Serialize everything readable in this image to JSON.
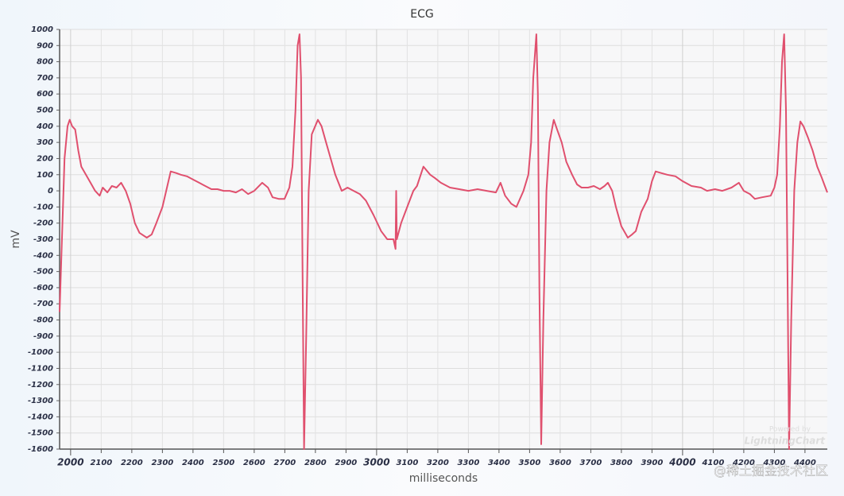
{
  "chart_data": {
    "type": "line",
    "title": "ECG",
    "x_label": "milliseconds",
    "y_label": "mV",
    "xlim": [
      1964,
      4473
    ],
    "ylim": [
      -1600,
      1000
    ],
    "xticks": [
      2000,
      2100,
      2200,
      2300,
      2400,
      2500,
      2600,
      2700,
      2800,
      2900,
      3000,
      3100,
      3200,
      3300,
      3400,
      3500,
      3600,
      3700,
      3800,
      3900,
      4000,
      4100,
      4200,
      4300,
      4400
    ],
    "yticks": [
      -1600,
      -1500,
      -1400,
      -1300,
      -1200,
      -1100,
      -1000,
      -900,
      -800,
      -700,
      -600,
      -500,
      -400,
      -300,
      -200,
      -100,
      0,
      100,
      200,
      300,
      400,
      500,
      600,
      700,
      800,
      900,
      1000
    ],
    "grid": true,
    "x": [
      1964,
      1980,
      1990,
      1997,
      2005,
      2015,
      2025,
      2035,
      2050,
      2065,
      2080,
      2095,
      2105,
      2120,
      2135,
      2150,
      2165,
      2180,
      2195,
      2210,
      2225,
      2249,
      2265,
      2280,
      2300,
      2310,
      2327,
      2345,
      2360,
      2380,
      2400,
      2420,
      2440,
      2460,
      2480,
      2500,
      2520,
      2540,
      2560,
      2580,
      2600,
      2626,
      2645,
      2660,
      2680,
      2699,
      2715,
      2725,
      2735,
      2742,
      2748,
      2753,
      2758,
      2763,
      2770,
      2778,
      2788,
      2808,
      2820,
      2835,
      2850,
      2865,
      2886,
      2905,
      2925,
      2945,
      2965,
      2990,
      3015,
      3035,
      3055,
      3062,
      3064,
      3066,
      3080,
      3100,
      3120,
      3132,
      3153,
      3175,
      3190,
      3210,
      3240,
      3270,
      3300,
      3330,
      3360,
      3390,
      3405,
      3420,
      3440,
      3457,
      3480,
      3496,
      3505,
      3512,
      3522,
      3527,
      3532,
      3538,
      3545,
      3555,
      3565,
      3579,
      3590,
      3605,
      3620,
      3639,
      3655,
      3670,
      3691,
      3710,
      3730,
      3745,
      3756,
      3770,
      3782,
      3800,
      3821,
      3835,
      3847,
      3865,
      3886,
      3900,
      3912,
      3930,
      3950,
      3977,
      4000,
      4029,
      4060,
      4080,
      4106,
      4130,
      4160,
      4184,
      4200,
      4220,
      4236,
      4260,
      4288,
      4300,
      4309,
      4318,
      4325,
      4332,
      4338,
      4343,
      4348,
      4355,
      4365,
      4375,
      4385,
      4395,
      4410,
      4425,
      4440,
      4455,
      4465,
      4473
    ],
    "series": [
      {
        "name": "ECG",
        "color": "#e0506e",
        "values": [
          -750,
          200,
          400,
          440,
          400,
          380,
          250,
          150,
          100,
          50,
          0,
          -30,
          20,
          -10,
          30,
          20,
          50,
          0,
          -80,
          -200,
          -260,
          -290,
          -270,
          -200,
          -100,
          -20,
          120,
          110,
          100,
          90,
          70,
          50,
          30,
          10,
          10,
          0,
          0,
          -10,
          10,
          -20,
          0,
          50,
          20,
          -40,
          -50,
          -50,
          20,
          150,
          500,
          900,
          970,
          700,
          -500,
          -1600,
          -900,
          0,
          350,
          440,
          400,
          300,
          200,
          100,
          0,
          20,
          0,
          -20,
          -60,
          -150,
          -250,
          -300,
          -300,
          -360,
          0,
          -300,
          -200,
          -100,
          0,
          30,
          150,
          100,
          80,
          50,
          20,
          10,
          0,
          10,
          0,
          -10,
          50,
          -30,
          -80,
          -100,
          0,
          100,
          300,
          700,
          970,
          600,
          -600,
          -1570,
          -800,
          0,
          300,
          440,
          380,
          300,
          180,
          100,
          40,
          20,
          20,
          30,
          10,
          30,
          50,
          0,
          -100,
          -220,
          -290,
          -270,
          -250,
          -130,
          -50,
          60,
          120,
          110,
          100,
          90,
          60,
          30,
          20,
          0,
          10,
          0,
          20,
          50,
          0,
          -20,
          -50,
          -40,
          -30,
          20,
          100,
          400,
          800,
          970,
          500,
          -500,
          -1600,
          -800,
          0,
          300,
          430,
          400,
          330,
          250,
          150,
          80,
          30,
          -10
        ]
      }
    ],
    "watermarks": [
      "Powered by",
      "LightningChart",
      "@稀土掘金技术社区"
    ]
  }
}
